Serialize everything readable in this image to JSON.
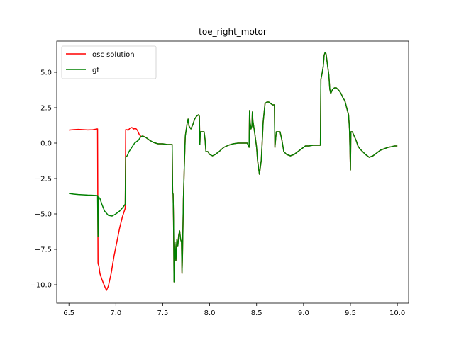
{
  "chart_data": {
    "type": "line",
    "title": "toe_right_motor",
    "xlabel": "",
    "ylabel": "",
    "xlim": [
      6.37,
      10.12
    ],
    "ylim": [
      -11.3,
      7.2
    ],
    "x_ticks": [
      6.5,
      7.0,
      7.5,
      8.0,
      8.5,
      9.0,
      9.5,
      10.0
    ],
    "x_tick_labels": [
      "6.5",
      "7.0",
      "7.5",
      "8.0",
      "8.5",
      "9.0",
      "9.5",
      "10.0"
    ],
    "y_ticks": [
      5.0,
      2.5,
      0.0,
      -2.5,
      -5.0,
      -7.5,
      -10.0
    ],
    "y_tick_labels": [
      "5.0",
      "2.5",
      "0.0",
      "−2.5",
      "−5.0",
      "−7.5",
      "−10.0"
    ],
    "grid": false,
    "legend_position": "top-left",
    "series": [
      {
        "name": "osc solution",
        "color": "#ff0000",
        "points": [
          [
            6.5,
            0.92
          ],
          [
            6.55,
            0.95
          ],
          [
            6.6,
            0.97
          ],
          [
            6.65,
            0.95
          ],
          [
            6.7,
            0.93
          ],
          [
            6.75,
            0.94
          ],
          [
            6.8,
            1.0
          ],
          [
            6.805,
            1.0
          ],
          [
            6.81,
            -8.5
          ],
          [
            6.82,
            -8.7
          ],
          [
            6.83,
            -9.2
          ],
          [
            6.85,
            -9.6
          ],
          [
            6.88,
            -10.1
          ],
          [
            6.9,
            -10.4
          ],
          [
            6.92,
            -10.1
          ],
          [
            6.95,
            -9.2
          ],
          [
            6.98,
            -8.0
          ],
          [
            7.01,
            -7.0
          ],
          [
            7.04,
            -6.0
          ],
          [
            7.07,
            -5.2
          ],
          [
            7.1,
            -4.6
          ],
          [
            7.105,
            0.95
          ],
          [
            7.12,
            0.95
          ],
          [
            7.13,
            0.9
          ],
          [
            7.15,
            1.05
          ],
          [
            7.17,
            1.1
          ],
          [
            7.19,
            1.0
          ],
          [
            7.21,
            1.05
          ],
          [
            7.23,
            0.9
          ],
          [
            7.25,
            0.6
          ],
          [
            7.27,
            0.45
          ],
          [
            7.29,
            0.5
          ],
          [
            7.32,
            0.4
          ],
          [
            7.36,
            0.2
          ],
          [
            7.4,
            0.05
          ],
          [
            7.45,
            -0.05
          ],
          [
            7.5,
            -0.05
          ],
          [
            7.55,
            -0.1
          ],
          [
            7.58,
            -0.1
          ],
          [
            7.6,
            -0.1
          ],
          [
            7.605,
            -3.5
          ],
          [
            7.61,
            -3.6
          ],
          [
            7.615,
            -5.5
          ],
          [
            7.62,
            -9.8
          ],
          [
            7.63,
            -7.0
          ],
          [
            7.64,
            -8.3
          ],
          [
            7.65,
            -6.8
          ],
          [
            7.66,
            -7.3
          ],
          [
            7.67,
            -6.5
          ],
          [
            7.68,
            -6.2
          ],
          [
            7.69,
            -6.8
          ],
          [
            7.7,
            -7.0
          ],
          [
            7.705,
            -9.2
          ],
          [
            7.71,
            -8.0
          ],
          [
            7.72,
            -4.0
          ],
          [
            7.73,
            -1.5
          ],
          [
            7.74,
            0.5
          ],
          [
            7.76,
            1.4
          ],
          [
            7.77,
            1.7
          ],
          [
            7.78,
            1.2
          ],
          [
            7.8,
            1.0
          ],
          [
            7.82,
            1.3
          ],
          [
            7.84,
            1.7
          ],
          [
            7.86,
            1.9
          ],
          [
            7.88,
            2.0
          ],
          [
            7.89,
            1.9
          ],
          [
            7.895,
            -0.1
          ],
          [
            7.9,
            0.8
          ],
          [
            7.92,
            0.8
          ],
          [
            7.94,
            0.8
          ],
          [
            7.95,
            0.3
          ],
          [
            7.96,
            -0.6
          ],
          [
            7.98,
            -0.6
          ],
          [
            8.0,
            -0.8
          ],
          [
            8.03,
            -0.9
          ],
          [
            8.06,
            -0.8
          ],
          [
            8.1,
            -0.6
          ],
          [
            8.15,
            -0.3
          ],
          [
            8.2,
            -0.15
          ],
          [
            8.25,
            -0.05
          ],
          [
            8.3,
            0.0
          ],
          [
            8.35,
            0.0
          ],
          [
            8.4,
            0.0
          ],
          [
            8.42,
            -0.3
          ],
          [
            8.425,
            2.3
          ],
          [
            8.43,
            1.5
          ],
          [
            8.44,
            1.0
          ],
          [
            8.45,
            1.2
          ],
          [
            8.455,
            2.2
          ],
          [
            8.46,
            1.6
          ],
          [
            8.48,
            0.7
          ],
          [
            8.5,
            -0.3
          ],
          [
            8.51,
            -1.2
          ],
          [
            8.53,
            -2.2
          ],
          [
            8.55,
            -1.2
          ],
          [
            8.57,
            1.5
          ],
          [
            8.59,
            2.8
          ],
          [
            8.61,
            2.9
          ],
          [
            8.63,
            2.9
          ],
          [
            8.65,
            2.8
          ],
          [
            8.67,
            2.7
          ],
          [
            8.69,
            2.7
          ],
          [
            8.695,
            -0.3
          ],
          [
            8.71,
            0.8
          ],
          [
            8.73,
            0.8
          ],
          [
            8.75,
            0.8
          ],
          [
            8.77,
            0.2
          ],
          [
            8.79,
            -0.6
          ],
          [
            8.82,
            -0.8
          ],
          [
            8.86,
            -0.9
          ],
          [
            8.9,
            -0.8
          ],
          [
            8.94,
            -0.6
          ],
          [
            8.98,
            -0.4
          ],
          [
            9.02,
            -0.2
          ],
          [
            9.06,
            -0.2
          ],
          [
            9.1,
            -0.15
          ],
          [
            9.15,
            -0.15
          ],
          [
            9.18,
            -0.15
          ],
          [
            9.185,
            4.5
          ],
          [
            9.2,
            5.0
          ],
          [
            9.21,
            5.4
          ],
          [
            9.22,
            6.2
          ],
          [
            9.23,
            6.4
          ],
          [
            9.24,
            6.3
          ],
          [
            9.25,
            5.8
          ],
          [
            9.27,
            4.8
          ],
          [
            9.28,
            3.8
          ],
          [
            9.29,
            3.5
          ],
          [
            9.31,
            3.8
          ],
          [
            9.33,
            3.9
          ],
          [
            9.35,
            3.9
          ],
          [
            9.38,
            3.7
          ],
          [
            9.4,
            3.5
          ],
          [
            9.42,
            3.2
          ],
          [
            9.44,
            3.0
          ],
          [
            9.46,
            2.5
          ],
          [
            9.48,
            2.0
          ],
          [
            9.49,
            1.0
          ],
          [
            9.5,
            -1.9
          ],
          [
            9.505,
            0.8
          ],
          [
            9.52,
            0.8
          ],
          [
            9.54,
            0.5
          ],
          [
            9.56,
            0.2
          ],
          [
            9.58,
            -0.2
          ],
          [
            9.6,
            -0.4
          ],
          [
            9.63,
            -0.6
          ],
          [
            9.66,
            -0.8
          ],
          [
            9.7,
            -1.0
          ],
          [
            9.74,
            -0.9
          ],
          [
            9.78,
            -0.7
          ],
          [
            9.82,
            -0.5
          ],
          [
            9.86,
            -0.4
          ],
          [
            9.9,
            -0.3
          ],
          [
            9.94,
            -0.25
          ],
          [
            9.97,
            -0.2
          ],
          [
            10.0,
            -0.2
          ]
        ]
      },
      {
        "name": "gt",
        "color": "#008000",
        "points": [
          [
            6.5,
            -3.55
          ],
          [
            6.55,
            -3.6
          ],
          [
            6.6,
            -3.63
          ],
          [
            6.65,
            -3.65
          ],
          [
            6.7,
            -3.67
          ],
          [
            6.75,
            -3.68
          ],
          [
            6.8,
            -3.7
          ],
          [
            6.805,
            -3.7
          ],
          [
            6.81,
            -6.6
          ],
          [
            6.815,
            -3.8
          ],
          [
            6.83,
            -3.9
          ],
          [
            6.85,
            -4.3
          ],
          [
            6.88,
            -4.8
          ],
          [
            6.92,
            -5.1
          ],
          [
            6.96,
            -5.15
          ],
          [
            7.0,
            -5.0
          ],
          [
            7.04,
            -4.8
          ],
          [
            7.08,
            -4.5
          ],
          [
            7.1,
            -4.3
          ],
          [
            7.105,
            -1.0
          ],
          [
            7.12,
            -0.9
          ],
          [
            7.14,
            -0.6
          ],
          [
            7.16,
            -0.4
          ],
          [
            7.18,
            -0.2
          ],
          [
            7.2,
            0.0
          ],
          [
            7.22,
            0.1
          ],
          [
            7.24,
            0.2
          ],
          [
            7.26,
            0.4
          ],
          [
            7.28,
            0.5
          ],
          [
            7.3,
            0.45
          ],
          [
            7.32,
            0.4
          ],
          [
            7.36,
            0.2
          ],
          [
            7.4,
            0.05
          ],
          [
            7.45,
            -0.05
          ],
          [
            7.5,
            -0.05
          ],
          [
            7.55,
            -0.1
          ],
          [
            7.58,
            -0.1
          ],
          [
            7.6,
            -0.1
          ],
          [
            7.605,
            -3.5
          ],
          [
            7.61,
            -3.6
          ],
          [
            7.615,
            -5.5
          ],
          [
            7.62,
            -9.8
          ],
          [
            7.63,
            -7.0
          ],
          [
            7.64,
            -8.3
          ],
          [
            7.65,
            -6.8
          ],
          [
            7.66,
            -7.3
          ],
          [
            7.67,
            -6.5
          ],
          [
            7.68,
            -6.2
          ],
          [
            7.69,
            -6.8
          ],
          [
            7.7,
            -7.0
          ],
          [
            7.705,
            -9.2
          ],
          [
            7.71,
            -8.0
          ],
          [
            7.72,
            -4.0
          ],
          [
            7.73,
            -1.5
          ],
          [
            7.74,
            0.5
          ],
          [
            7.76,
            1.4
          ],
          [
            7.77,
            1.7
          ],
          [
            7.78,
            1.2
          ],
          [
            7.8,
            1.0
          ],
          [
            7.82,
            1.3
          ],
          [
            7.84,
            1.7
          ],
          [
            7.86,
            1.9
          ],
          [
            7.88,
            2.0
          ],
          [
            7.89,
            1.9
          ],
          [
            7.895,
            -0.1
          ],
          [
            7.9,
            0.8
          ],
          [
            7.92,
            0.8
          ],
          [
            7.94,
            0.8
          ],
          [
            7.95,
            0.3
          ],
          [
            7.96,
            -0.6
          ],
          [
            7.98,
            -0.6
          ],
          [
            8.0,
            -0.8
          ],
          [
            8.03,
            -0.9
          ],
          [
            8.06,
            -0.8
          ],
          [
            8.1,
            -0.6
          ],
          [
            8.15,
            -0.3
          ],
          [
            8.2,
            -0.15
          ],
          [
            8.25,
            -0.05
          ],
          [
            8.3,
            0.0
          ],
          [
            8.35,
            0.0
          ],
          [
            8.4,
            0.0
          ],
          [
            8.42,
            -0.3
          ],
          [
            8.425,
            2.3
          ],
          [
            8.43,
            1.5
          ],
          [
            8.44,
            1.0
          ],
          [
            8.45,
            1.2
          ],
          [
            8.455,
            2.2
          ],
          [
            8.46,
            1.6
          ],
          [
            8.48,
            0.7
          ],
          [
            8.5,
            -0.3
          ],
          [
            8.51,
            -1.2
          ],
          [
            8.53,
            -2.2
          ],
          [
            8.55,
            -1.2
          ],
          [
            8.57,
            1.5
          ],
          [
            8.59,
            2.8
          ],
          [
            8.61,
            2.9
          ],
          [
            8.63,
            2.9
          ],
          [
            8.65,
            2.8
          ],
          [
            8.67,
            2.7
          ],
          [
            8.69,
            2.7
          ],
          [
            8.695,
            -0.3
          ],
          [
            8.71,
            0.8
          ],
          [
            8.73,
            0.8
          ],
          [
            8.75,
            0.8
          ],
          [
            8.77,
            0.2
          ],
          [
            8.79,
            -0.6
          ],
          [
            8.82,
            -0.8
          ],
          [
            8.86,
            -0.9
          ],
          [
            8.9,
            -0.8
          ],
          [
            8.94,
            -0.6
          ],
          [
            8.98,
            -0.4
          ],
          [
            9.02,
            -0.2
          ],
          [
            9.06,
            -0.2
          ],
          [
            9.1,
            -0.15
          ],
          [
            9.15,
            -0.15
          ],
          [
            9.18,
            -0.15
          ],
          [
            9.185,
            4.5
          ],
          [
            9.2,
            5.0
          ],
          [
            9.21,
            5.4
          ],
          [
            9.22,
            6.2
          ],
          [
            9.23,
            6.4
          ],
          [
            9.24,
            6.3
          ],
          [
            9.25,
            5.8
          ],
          [
            9.27,
            4.8
          ],
          [
            9.28,
            3.8
          ],
          [
            9.29,
            3.5
          ],
          [
            9.31,
            3.8
          ],
          [
            9.33,
            3.9
          ],
          [
            9.35,
            3.9
          ],
          [
            9.38,
            3.7
          ],
          [
            9.4,
            3.5
          ],
          [
            9.42,
            3.2
          ],
          [
            9.44,
            3.0
          ],
          [
            9.46,
            2.5
          ],
          [
            9.48,
            2.0
          ],
          [
            9.49,
            1.0
          ],
          [
            9.5,
            -1.9
          ],
          [
            9.505,
            0.8
          ],
          [
            9.52,
            0.8
          ],
          [
            9.54,
            0.5
          ],
          [
            9.56,
            0.2
          ],
          [
            9.58,
            -0.2
          ],
          [
            9.6,
            -0.4
          ],
          [
            9.63,
            -0.6
          ],
          [
            9.66,
            -0.8
          ],
          [
            9.7,
            -1.0
          ],
          [
            9.74,
            -0.9
          ],
          [
            9.78,
            -0.7
          ],
          [
            9.82,
            -0.5
          ],
          [
            9.86,
            -0.4
          ],
          [
            9.9,
            -0.3
          ],
          [
            9.94,
            -0.25
          ],
          [
            9.97,
            -0.2
          ],
          [
            10.0,
            -0.2
          ]
        ]
      }
    ]
  }
}
